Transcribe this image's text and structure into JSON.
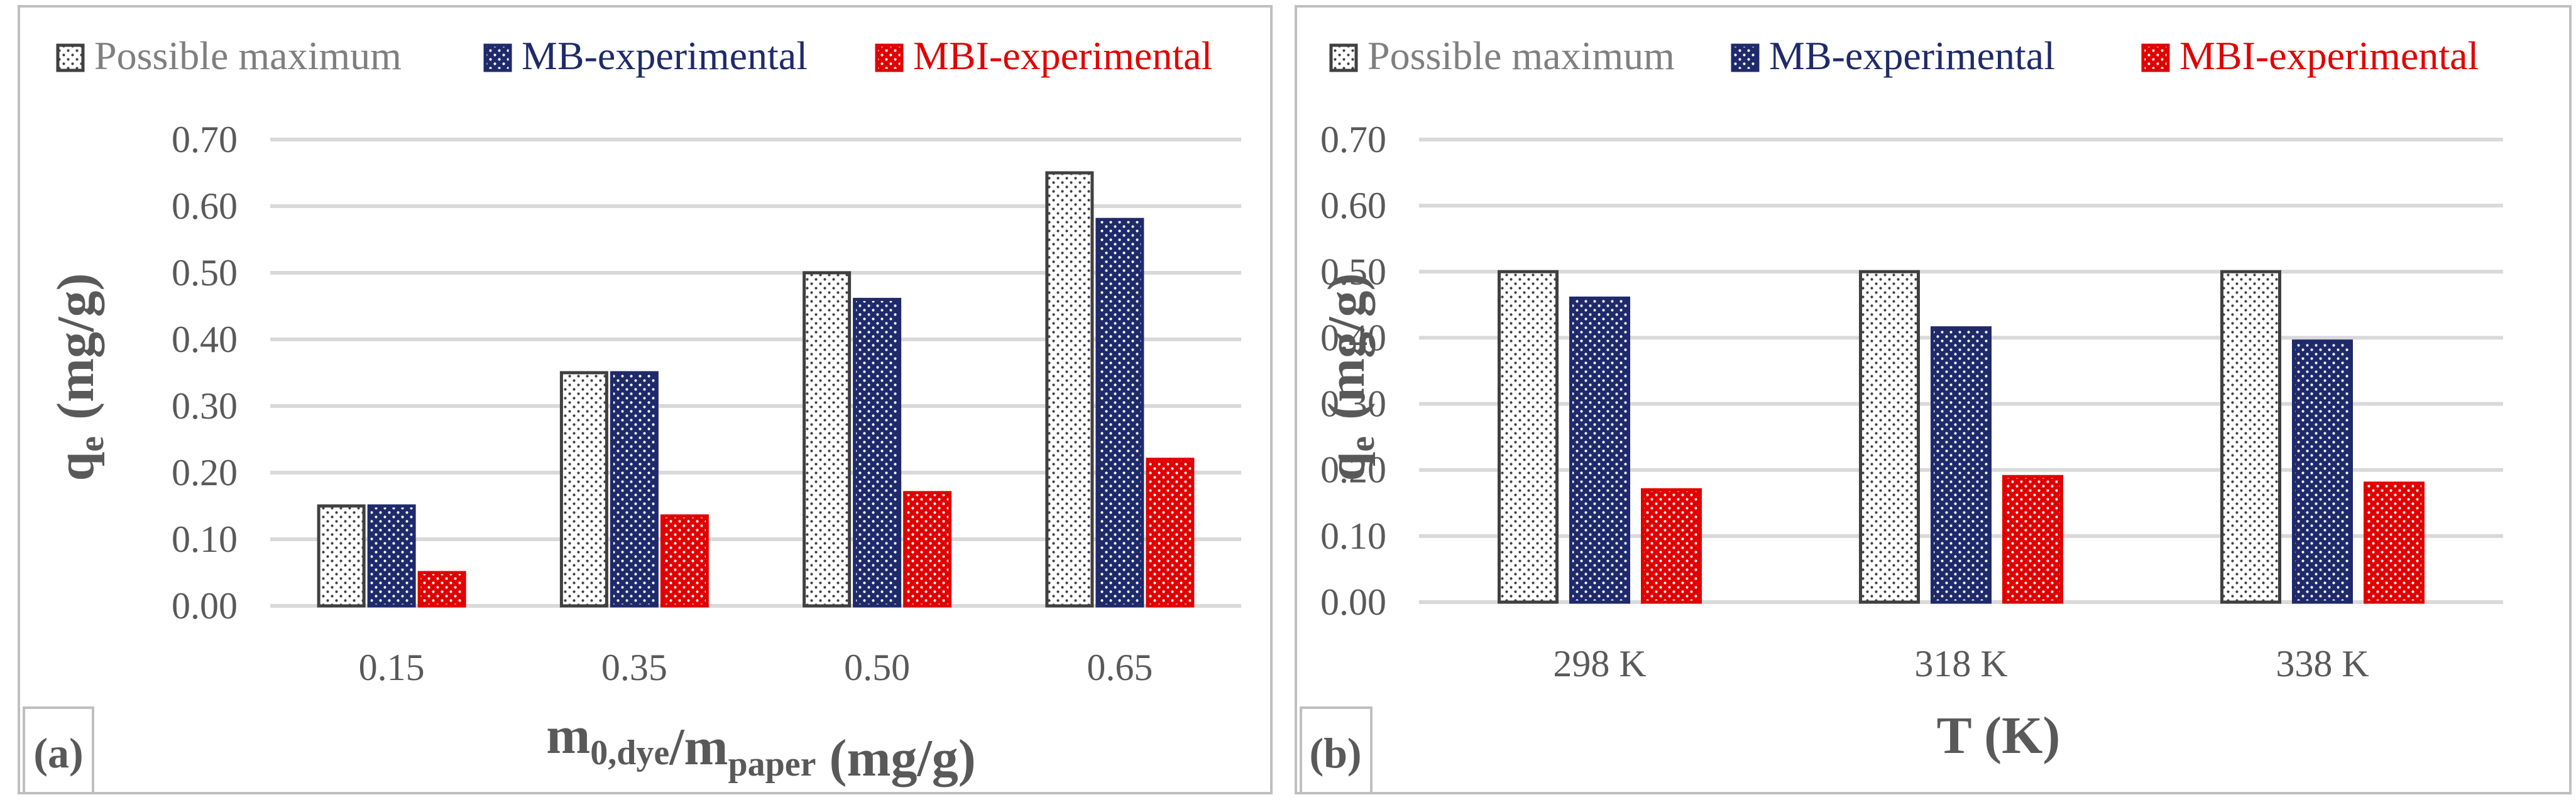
{
  "colors": {
    "possible": "#f2f2f2",
    "possible_stroke": "#404040",
    "mb": "#1f2a6b",
    "mbi": "#e00000",
    "grid": "#d9d9d9",
    "frame": "#bfbfbf",
    "tick": "#595959",
    "label": "#595959",
    "legend_possible_text": "#7f7f7f",
    "legend_mb_text": "#1f2a6b",
    "legend_mbi_text": "#e00000"
  },
  "chart_data": [
    {
      "type": "bar",
      "panel_label": "(a)",
      "categories": [
        "0.15",
        "0.35",
        "0.50",
        "0.65"
      ],
      "series": [
        {
          "name": "Possible maximum",
          "values": [
            0.15,
            0.35,
            0.5,
            0.65
          ]
        },
        {
          "name": "MB-experimental",
          "values": [
            0.15,
            0.35,
            0.46,
            0.58
          ]
        },
        {
          "name": "MBI-experimental",
          "values": [
            0.05,
            0.135,
            0.17,
            0.22
          ]
        }
      ],
      "ylabel_main": "q",
      "ylabel_sub": "e",
      "ylabel_unit": "(mg/g)",
      "xlabel_parts": [
        {
          "text": "m",
          "sub": "0,dye"
        },
        {
          "text": "/m",
          "sub": "paper"
        },
        {
          "text": " (mg/g)",
          "sub": ""
        }
      ],
      "ylim": [
        0,
        0.7
      ],
      "yticks": [
        "0.00",
        "0.10",
        "0.20",
        "0.30",
        "0.40",
        "0.50",
        "0.60",
        "0.70"
      ],
      "grid": true,
      "legend": "top"
    },
    {
      "type": "bar",
      "panel_label": "(b)",
      "categories": [
        "298 K",
        "318 K",
        "338 K"
      ],
      "series": [
        {
          "name": "Possible maximum",
          "values": [
            0.5,
            0.5,
            0.5
          ]
        },
        {
          "name": "MB-experimental",
          "values": [
            0.46,
            0.415,
            0.395
          ]
        },
        {
          "name": "MBI-experimental",
          "values": [
            0.17,
            0.19,
            0.18
          ]
        }
      ],
      "ylabel_main": "q",
      "ylabel_sub": "e",
      "ylabel_unit": "(mg/g)",
      "xlabel_parts": [
        {
          "text": "T (K)",
          "sub": ""
        }
      ],
      "ylim": [
        0,
        0.7
      ],
      "yticks": [
        "0.00",
        "0.10",
        "0.20",
        "0.30",
        "0.40",
        "0.50",
        "0.60",
        "0.70"
      ],
      "grid": true,
      "legend": "top"
    }
  ]
}
